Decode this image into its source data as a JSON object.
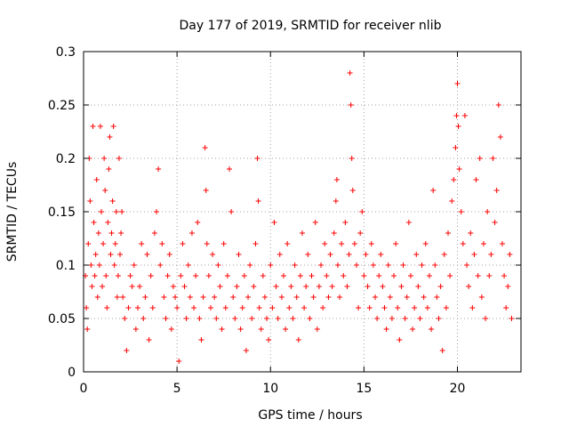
{
  "chart_data": {
    "type": "scatter",
    "title": "Day 177 of 2019, SRMTID for receiver nlib",
    "xlabel": "GPS time / hours",
    "ylabel": "SRMTID / TECUs",
    "xlim": [
      0,
      23.4
    ],
    "ylim": [
      0,
      0.3
    ],
    "x_ticks": [
      0,
      5,
      10,
      15,
      20
    ],
    "x_tick_labels": [
      "0",
      "5",
      "10",
      "15",
      "20"
    ],
    "y_ticks": [
      0,
      0.05,
      0.1,
      0.15,
      0.2,
      0.25,
      0.3
    ],
    "y_tick_labels": [
      "0",
      "0.05",
      "0.1",
      "0.15",
      "0.2",
      "0.25",
      "0.3"
    ],
    "grid": true,
    "marker": "+",
    "series": [
      {
        "name": "SRMTID",
        "color": "#ff0000",
        "points": [
          [
            0.1,
            0.09
          ],
          [
            0.15,
            0.06
          ],
          [
            0.2,
            0.04
          ],
          [
            0.25,
            0.12
          ],
          [
            0.3,
            0.2
          ],
          [
            0.35,
            0.16
          ],
          [
            0.4,
            0.1
          ],
          [
            0.45,
            0.08
          ],
          [
            0.5,
            0.23
          ],
          [
            0.55,
            0.14
          ],
          [
            0.6,
            0.09
          ],
          [
            0.65,
            0.11
          ],
          [
            0.7,
            0.18
          ],
          [
            0.75,
            0.07
          ],
          [
            0.8,
            0.13
          ],
          [
            0.85,
            0.1
          ],
          [
            0.9,
            0.23
          ],
          [
            0.95,
            0.15
          ],
          [
            1.0,
            0.08
          ],
          [
            1.05,
            0.12
          ],
          [
            1.1,
            0.2
          ],
          [
            1.15,
            0.17
          ],
          [
            1.2,
            0.09
          ],
          [
            1.25,
            0.06
          ],
          [
            1.3,
            0.14
          ],
          [
            1.35,
            0.19
          ],
          [
            1.4,
            0.22
          ],
          [
            1.45,
            0.11
          ],
          [
            1.5,
            0.13
          ],
          [
            1.55,
            0.16
          ],
          [
            1.6,
            0.23
          ],
          [
            1.65,
            0.1
          ],
          [
            1.7,
            0.12
          ],
          [
            1.75,
            0.15
          ],
          [
            1.8,
            0.07
          ],
          [
            1.85,
            0.09
          ],
          [
            1.9,
            0.2
          ],
          [
            1.95,
            0.11
          ],
          [
            2.0,
            0.13
          ],
          [
            2.05,
            0.15
          ],
          [
            2.1,
            0.07
          ],
          [
            2.2,
            0.05
          ],
          [
            2.3,
            0.02
          ],
          [
            2.4,
            0.06
          ],
          [
            2.5,
            0.09
          ],
          [
            2.6,
            0.08
          ],
          [
            2.7,
            0.1
          ],
          [
            2.8,
            0.04
          ],
          [
            2.9,
            0.06
          ],
          [
            3.0,
            0.08
          ],
          [
            3.1,
            0.12
          ],
          [
            3.2,
            0.05
          ],
          [
            3.3,
            0.07
          ],
          [
            3.4,
            0.11
          ],
          [
            3.5,
            0.03
          ],
          [
            3.6,
            0.09
          ],
          [
            3.7,
            0.06
          ],
          [
            3.8,
            0.13
          ],
          [
            3.9,
            0.15
          ],
          [
            4.0,
            0.19
          ],
          [
            4.1,
            0.1
          ],
          [
            4.2,
            0.12
          ],
          [
            4.3,
            0.07
          ],
          [
            4.4,
            0.05
          ],
          [
            4.5,
            0.09
          ],
          [
            4.6,
            0.11
          ],
          [
            4.7,
            0.04
          ],
          [
            4.8,
            0.08
          ],
          [
            4.9,
            0.07
          ],
          [
            5.0,
            0.06
          ],
          [
            5.1,
            0.01
          ],
          [
            5.2,
            0.09
          ],
          [
            5.3,
            0.12
          ],
          [
            5.4,
            0.08
          ],
          [
            5.5,
            0.05
          ],
          [
            5.6,
            0.1
          ],
          [
            5.7,
            0.07
          ],
          [
            5.8,
            0.13
          ],
          [
            5.9,
            0.06
          ],
          [
            6.0,
            0.09
          ],
          [
            6.1,
            0.14
          ],
          [
            6.2,
            0.05
          ],
          [
            6.3,
            0.03
          ],
          [
            6.4,
            0.07
          ],
          [
            6.5,
            0.21
          ],
          [
            6.55,
            0.17
          ],
          [
            6.6,
            0.12
          ],
          [
            6.7,
            0.09
          ],
          [
            6.8,
            0.06
          ],
          [
            6.9,
            0.11
          ],
          [
            7.0,
            0.07
          ],
          [
            7.1,
            0.05
          ],
          [
            7.2,
            0.1
          ],
          [
            7.3,
            0.08
          ],
          [
            7.4,
            0.04
          ],
          [
            7.5,
            0.12
          ],
          [
            7.6,
            0.06
          ],
          [
            7.7,
            0.09
          ],
          [
            7.8,
            0.19
          ],
          [
            7.9,
            0.15
          ],
          [
            8.0,
            0.07
          ],
          [
            8.1,
            0.05
          ],
          [
            8.2,
            0.08
          ],
          [
            8.3,
            0.11
          ],
          [
            8.4,
            0.04
          ],
          [
            8.5,
            0.06
          ],
          [
            8.6,
            0.09
          ],
          [
            8.7,
            0.02
          ],
          [
            8.8,
            0.07
          ],
          [
            8.9,
            0.1
          ],
          [
            9.0,
            0.05
          ],
          [
            9.1,
            0.08
          ],
          [
            9.2,
            0.12
          ],
          [
            9.3,
            0.2
          ],
          [
            9.35,
            0.16
          ],
          [
            9.4,
            0.06
          ],
          [
            9.5,
            0.04
          ],
          [
            9.6,
            0.09
          ],
          [
            9.7,
            0.07
          ],
          [
            9.8,
            0.05
          ],
          [
            9.9,
            0.03
          ],
          [
            10.0,
            0.1
          ],
          [
            10.1,
            0.06
          ],
          [
            10.2,
            0.14
          ],
          [
            10.3,
            0.08
          ],
          [
            10.4,
            0.05
          ],
          [
            10.5,
            0.11
          ],
          [
            10.6,
            0.07
          ],
          [
            10.7,
            0.09
          ],
          [
            10.8,
            0.04
          ],
          [
            10.9,
            0.12
          ],
          [
            11.0,
            0.06
          ],
          [
            11.1,
            0.08
          ],
          [
            11.2,
            0.05
          ],
          [
            11.3,
            0.1
          ],
          [
            11.4,
            0.07
          ],
          [
            11.5,
            0.03
          ],
          [
            11.6,
            0.09
          ],
          [
            11.7,
            0.13
          ],
          [
            11.8,
            0.06
          ],
          [
            11.9,
            0.08
          ],
          [
            12.0,
            0.11
          ],
          [
            12.1,
            0.05
          ],
          [
            12.2,
            0.09
          ],
          [
            12.3,
            0.07
          ],
          [
            12.4,
            0.14
          ],
          [
            12.5,
            0.04
          ],
          [
            12.6,
            0.08
          ],
          [
            12.7,
            0.1
          ],
          [
            12.8,
            0.06
          ],
          [
            12.9,
            0.12
          ],
          [
            13.0,
            0.09
          ],
          [
            13.1,
            0.07
          ],
          [
            13.2,
            0.11
          ],
          [
            13.3,
            0.08
          ],
          [
            13.4,
            0.13
          ],
          [
            13.5,
            0.16
          ],
          [
            13.55,
            0.18
          ],
          [
            13.6,
            0.1
          ],
          [
            13.7,
            0.07
          ],
          [
            13.8,
            0.12
          ],
          [
            13.9,
            0.09
          ],
          [
            14.0,
            0.14
          ],
          [
            14.1,
            0.08
          ],
          [
            14.2,
            0.11
          ],
          [
            14.25,
            0.28
          ],
          [
            14.3,
            0.25
          ],
          [
            14.35,
            0.2
          ],
          [
            14.4,
            0.17
          ],
          [
            14.5,
            0.12
          ],
          [
            14.6,
            0.1
          ],
          [
            14.7,
            0.06
          ],
          [
            14.8,
            0.13
          ],
          [
            14.9,
            0.15
          ],
          [
            15.0,
            0.09
          ],
          [
            15.1,
            0.11
          ],
          [
            15.2,
            0.08
          ],
          [
            15.3,
            0.06
          ],
          [
            15.4,
            0.12
          ],
          [
            15.5,
            0.1
          ],
          [
            15.6,
            0.07
          ],
          [
            15.7,
            0.05
          ],
          [
            15.8,
            0.09
          ],
          [
            15.9,
            0.11
          ],
          [
            16.0,
            0.08
          ],
          [
            16.1,
            0.06
          ],
          [
            16.2,
            0.04
          ],
          [
            16.3,
            0.1
          ],
          [
            16.4,
            0.07
          ],
          [
            16.5,
            0.05
          ],
          [
            16.6,
            0.09
          ],
          [
            16.7,
            0.12
          ],
          [
            16.8,
            0.06
          ],
          [
            16.9,
            0.03
          ],
          [
            17.0,
            0.08
          ],
          [
            17.1,
            0.1
          ],
          [
            17.2,
            0.05
          ],
          [
            17.3,
            0.07
          ],
          [
            17.4,
            0.14
          ],
          [
            17.5,
            0.09
          ],
          [
            17.6,
            0.04
          ],
          [
            17.7,
            0.06
          ],
          [
            17.8,
            0.11
          ],
          [
            17.9,
            0.08
          ],
          [
            18.0,
            0.05
          ],
          [
            18.1,
            0.1
          ],
          [
            18.2,
            0.07
          ],
          [
            18.3,
            0.12
          ],
          [
            18.4,
            0.06
          ],
          [
            18.5,
            0.09
          ],
          [
            18.6,
            0.04
          ],
          [
            18.7,
            0.17
          ],
          [
            18.8,
            0.1
          ],
          [
            18.9,
            0.07
          ],
          [
            19.0,
            0.05
          ],
          [
            19.1,
            0.08
          ],
          [
            19.2,
            0.02
          ],
          [
            19.3,
            0.11
          ],
          [
            19.4,
            0.06
          ],
          [
            19.5,
            0.13
          ],
          [
            19.6,
            0.09
          ],
          [
            19.7,
            0.16
          ],
          [
            19.8,
            0.18
          ],
          [
            19.9,
            0.21
          ],
          [
            19.95,
            0.24
          ],
          [
            20.0,
            0.27
          ],
          [
            20.05,
            0.23
          ],
          [
            20.1,
            0.19
          ],
          [
            20.2,
            0.15
          ],
          [
            20.3,
            0.12
          ],
          [
            20.4,
            0.24
          ],
          [
            20.5,
            0.1
          ],
          [
            20.6,
            0.08
          ],
          [
            20.7,
            0.13
          ],
          [
            20.8,
            0.06
          ],
          [
            20.9,
            0.11
          ],
          [
            21.0,
            0.18
          ],
          [
            21.1,
            0.09
          ],
          [
            21.2,
            0.2
          ],
          [
            21.3,
            0.07
          ],
          [
            21.4,
            0.12
          ],
          [
            21.5,
            0.05
          ],
          [
            21.6,
            0.15
          ],
          [
            21.7,
            0.09
          ],
          [
            21.8,
            0.11
          ],
          [
            21.9,
            0.2
          ],
          [
            22.0,
            0.14
          ],
          [
            22.1,
            0.17
          ],
          [
            22.2,
            0.25
          ],
          [
            22.3,
            0.22
          ],
          [
            22.4,
            0.12
          ],
          [
            22.5,
            0.09
          ],
          [
            22.6,
            0.06
          ],
          [
            22.7,
            0.08
          ],
          [
            22.8,
            0.11
          ],
          [
            22.9,
            0.05
          ]
        ]
      }
    ]
  }
}
